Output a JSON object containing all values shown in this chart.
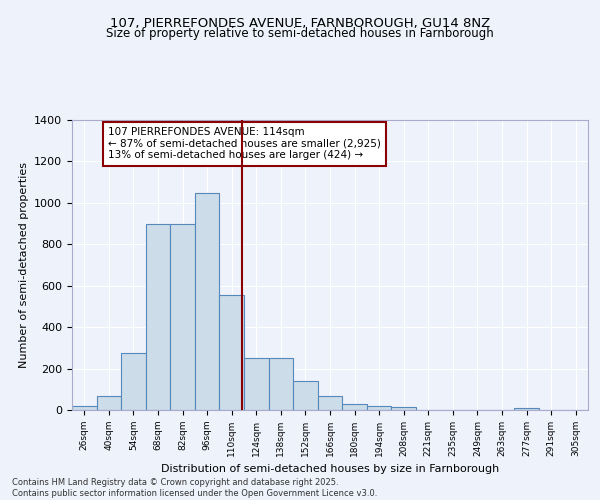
{
  "title": "107, PIERREFONDES AVENUE, FARNBOROUGH, GU14 8NZ",
  "subtitle": "Size of property relative to semi-detached houses in Farnborough",
  "xlabel": "Distribution of semi-detached houses by size in Farnborough",
  "ylabel": "Number of semi-detached properties",
  "bin_labels": [
    "26sqm",
    "40sqm",
    "54sqm",
    "68sqm",
    "82sqm",
    "96sqm",
    "110sqm",
    "124sqm",
    "138sqm",
    "152sqm",
    "166sqm",
    "180sqm",
    "194sqm",
    "208sqm",
    "221sqm",
    "235sqm",
    "249sqm",
    "263sqm",
    "277sqm",
    "291sqm",
    "305sqm"
  ],
  "bin_values": [
    18,
    70,
    275,
    900,
    900,
    1047,
    553,
    253,
    253,
    140,
    67,
    28,
    20,
    15,
    0,
    0,
    0,
    0,
    12,
    0,
    0
  ],
  "bar_color": "#ccdce8",
  "bar_edge_color": "#5588bb",
  "annotation_title": "107 PIERREFONDES AVENUE: 114sqm",
  "annotation_line1": "← 87% of semi-detached houses are smaller (2,925)",
  "annotation_line2": "13% of semi-detached houses are larger (424) →",
  "vline_pos": 6.42,
  "ylim": [
    0,
    1400
  ],
  "yticks": [
    0,
    200,
    400,
    600,
    800,
    1000,
    1200,
    1400
  ],
  "background_color": "#eef2fb",
  "grid_color": "#ffffff",
  "footer_line1": "Contains HM Land Registry data © Crown copyright and database right 2025.",
  "footer_line2": "Contains public sector information licensed under the Open Government Licence v3.0."
}
